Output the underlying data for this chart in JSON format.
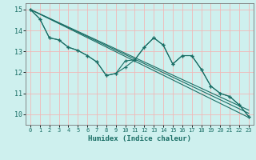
{
  "xlabel": "Humidex (Indice chaleur)",
  "xlim": [
    -0.5,
    23.5
  ],
  "ylim": [
    9.5,
    15.3
  ],
  "yticks": [
    10,
    11,
    12,
    13,
    14,
    15
  ],
  "xticks": [
    0,
    1,
    2,
    3,
    4,
    5,
    6,
    7,
    8,
    9,
    10,
    11,
    12,
    13,
    14,
    15,
    16,
    17,
    18,
    19,
    20,
    21,
    22,
    23
  ],
  "background_color": "#cef0ee",
  "grid_color": "#f0b8b8",
  "line_color": "#1a6e65",
  "curve1_x": [
    0,
    1,
    2,
    3,
    4,
    5,
    6,
    7,
    8,
    9,
    10,
    11,
    12,
    13,
    14,
    15,
    16,
    17,
    18,
    19,
    20,
    21,
    22,
    23
  ],
  "curve1_y": [
    15.0,
    14.55,
    13.65,
    13.55,
    13.2,
    13.05,
    12.8,
    12.5,
    11.85,
    11.95,
    12.55,
    12.6,
    13.2,
    13.65,
    13.3,
    12.4,
    12.8,
    12.8,
    12.15,
    11.35,
    11.0,
    10.85,
    10.45,
    9.9
  ],
  "curve2_x": [
    0,
    1,
    2,
    3,
    4,
    5,
    6,
    7,
    8,
    9,
    10,
    11,
    12,
    13,
    14,
    15,
    16,
    17,
    18,
    19,
    20,
    21,
    22,
    23
  ],
  "curve2_y": [
    15.0,
    14.55,
    13.65,
    13.55,
    13.2,
    13.05,
    12.8,
    12.5,
    11.85,
    11.95,
    12.25,
    12.6,
    13.2,
    13.65,
    13.3,
    12.4,
    12.8,
    12.8,
    12.15,
    11.35,
    11.0,
    10.85,
    10.45,
    9.9
  ],
  "trend1_x": [
    0,
    23
  ],
  "trend1_y": [
    15.0,
    9.85
  ],
  "trend2_x": [
    0,
    23
  ],
  "trend2_y": [
    15.0,
    10.05
  ],
  "trend3_x": [
    0,
    23
  ],
  "trend3_y": [
    15.0,
    10.2
  ]
}
